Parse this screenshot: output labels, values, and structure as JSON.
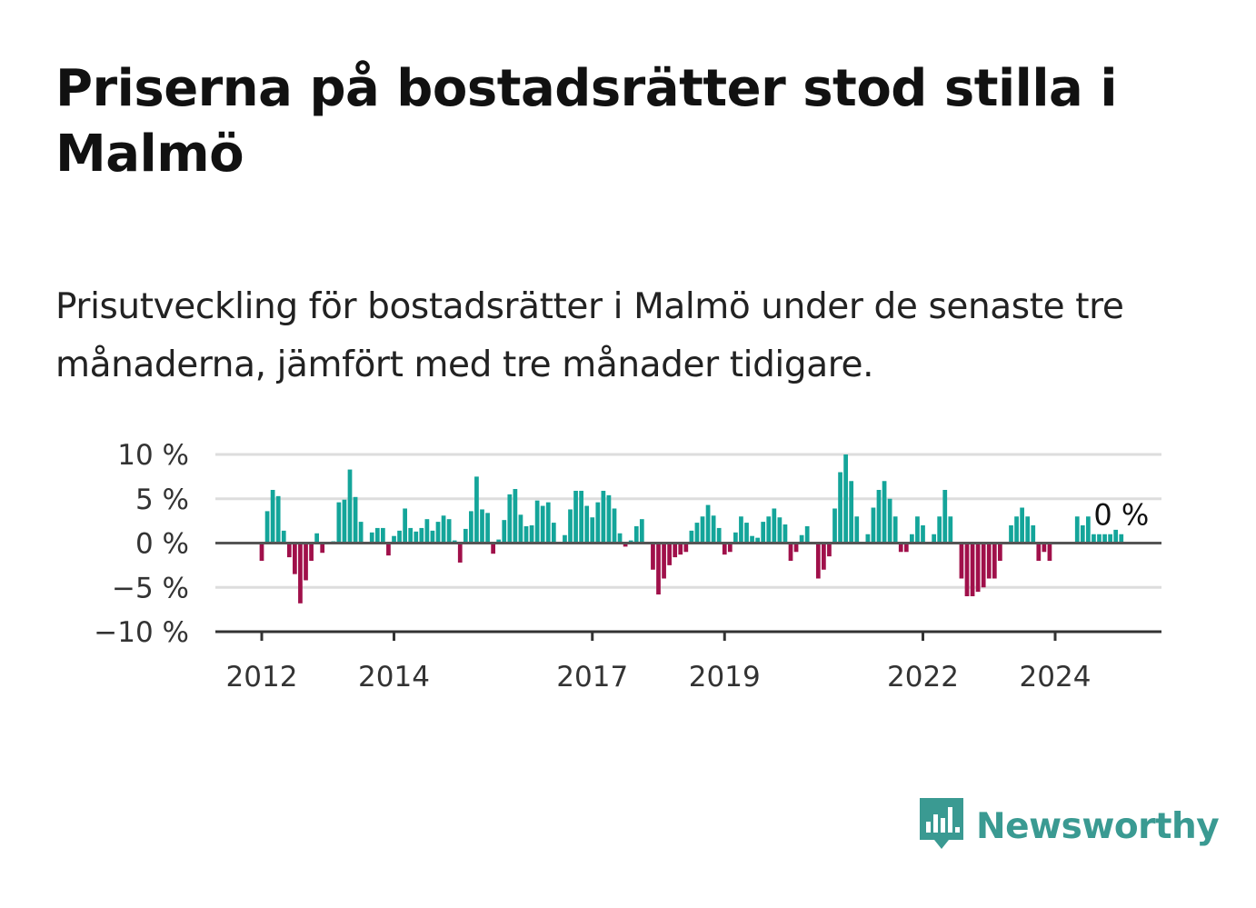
{
  "title": "Priserna på bostadsrätter stod stilla i Malmö",
  "subtitle": "Prisutveckling för bostadsrätter i Malmö under de senaste tre månaderna, jämfört med tre månader tidigare.",
  "brand": {
    "name": "Newsworthy",
    "icon": "bar-chart-speech-bubble-icon",
    "color": "#3a9a92"
  },
  "colors": {
    "positive": "#14a59a",
    "negative": "#a0104a",
    "grid": "#dddddd",
    "zero": "#555555"
  },
  "chart_data": {
    "type": "bar",
    "title": "Priserna på bostadsrätter stod stilla i Malmö",
    "subtitle": "Prisutveckling för bostadsrätter i Malmö under de senaste tre månaderna, jämfört med tre månader tidigare.",
    "xlabel": "",
    "ylabel": "",
    "ylim": [
      -10,
      10
    ],
    "yticks": [
      10,
      5,
      0,
      -5,
      -10
    ],
    "ytick_labels": [
      "10 %",
      "5 %",
      "0 %",
      "−5 %",
      "−10 %"
    ],
    "xticks": [
      {
        "year": 2012,
        "label": "2012"
      },
      {
        "year": 2014,
        "label": "2014"
      },
      {
        "year": 2017,
        "label": "2017"
      },
      {
        "year": 2019,
        "label": "2019"
      },
      {
        "year": 2022,
        "label": "2022"
      },
      {
        "year": 2024,
        "label": "2024"
      }
    ],
    "x_start": "2012-01",
    "x_end": "2024-12",
    "values": [
      -2,
      3.6,
      6,
      5.3,
      1.4,
      -1.6,
      -3.5,
      -6.8,
      -4.2,
      -2,
      1.1,
      -1.1,
      0,
      0.2,
      4.6,
      4.9,
      8.3,
      5.2,
      2.4,
      0,
      1.2,
      1.7,
      1.7,
      -1.4,
      0.8,
      1.4,
      3.9,
      1.7,
      1.3,
      1.7,
      2.7,
      1.4,
      2.4,
      3.1,
      2.7,
      0.3,
      -2.2,
      1.6,
      3.6,
      7.5,
      3.8,
      3.4,
      -1.2,
      0.4,
      2.6,
      5.5,
      6.1,
      3.2,
      1.9,
      2,
      4.8,
      4.2,
      4.6,
      2.3,
      0,
      0.9,
      3.8,
      5.9,
      5.9,
      4.2,
      2.9,
      4.6,
      5.9,
      5.4,
      3.9,
      1.1,
      -0.4,
      0.3,
      1.9,
      2.7,
      0,
      -3,
      -5.8,
      -4,
      -2.5,
      -1.6,
      -1.3,
      -1,
      1.4,
      2.3,
      3,
      4.3,
      3.1,
      1.7,
      -1.3,
      -1,
      1.2,
      3,
      2.3,
      0.8,
      0.6,
      2.4,
      3,
      3.9,
      2.9,
      2.1,
      -2,
      -1,
      0.9,
      1.9,
      0,
      -4,
      -3,
      -1.5,
      3.9,
      8,
      10,
      7,
      3,
      0,
      1,
      4,
      6,
      7,
      5,
      3,
      -1,
      -1,
      1,
      3,
      2,
      0,
      1,
      3,
      6,
      3,
      0,
      -4,
      -6,
      -6,
      -5.5,
      -5,
      -4,
      -4,
      -2,
      0,
      2,
      3,
      4,
      3,
      2,
      -2,
      -1,
      -2,
      0,
      0,
      0,
      0,
      3,
      2,
      3,
      1,
      1,
      1,
      1,
      1.5,
      1,
      0
    ],
    "last_value_label": "0 %"
  }
}
